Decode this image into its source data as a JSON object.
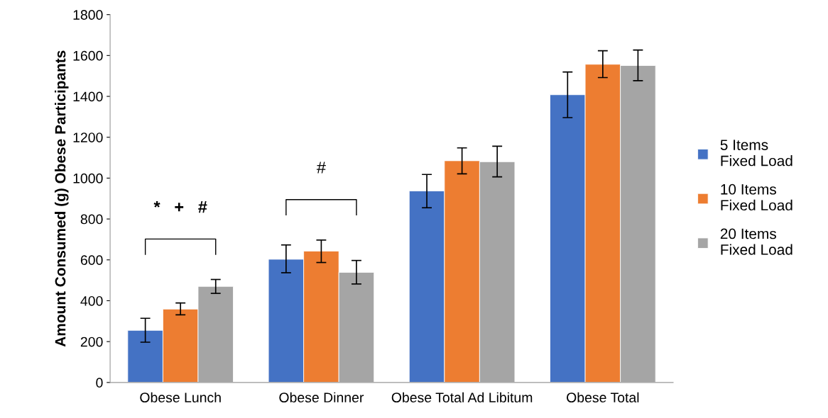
{
  "chart_data": {
    "type": "bar",
    "ylabel": "Amount Consumed (g) Obese Participants",
    "categories": [
      "Obese Lunch",
      "Obese Dinner",
      "Obese Total Ad Libitum",
      "Obese Total"
    ],
    "series": [
      {
        "name": "5 Items Fixed Load",
        "color": "#4472c4",
        "values": [
          255,
          603,
          937,
          1408
        ],
        "errors": [
          [
            197,
            314
          ],
          [
            537,
            673
          ],
          [
            855,
            1018
          ],
          [
            1296,
            1519
          ]
        ]
      },
      {
        "name": "10 Items Fixed Load",
        "color": "#ed7d31",
        "values": [
          359,
          643,
          1085,
          1557
        ],
        "errors": [
          [
            331,
            389
          ],
          [
            587,
            697
          ],
          [
            1021,
            1148
          ],
          [
            1492,
            1623
          ]
        ]
      },
      {
        "name": "20 Items Fixed Load",
        "color": "#a5a5a5",
        "values": [
          470,
          539,
          1080,
          1551
        ],
        "errors": [
          [
            436,
            504
          ],
          [
            482,
            597
          ],
          [
            1006,
            1156
          ],
          [
            1477,
            1627
          ]
        ]
      }
    ],
    "ylim": [
      0,
      1800
    ],
    "yticks": [
      0,
      200,
      400,
      600,
      800,
      1000,
      1200,
      1400,
      1600,
      1800
    ],
    "annotations": [
      "*   +   #",
      "#"
    ],
    "grid": false,
    "legend": "right"
  }
}
